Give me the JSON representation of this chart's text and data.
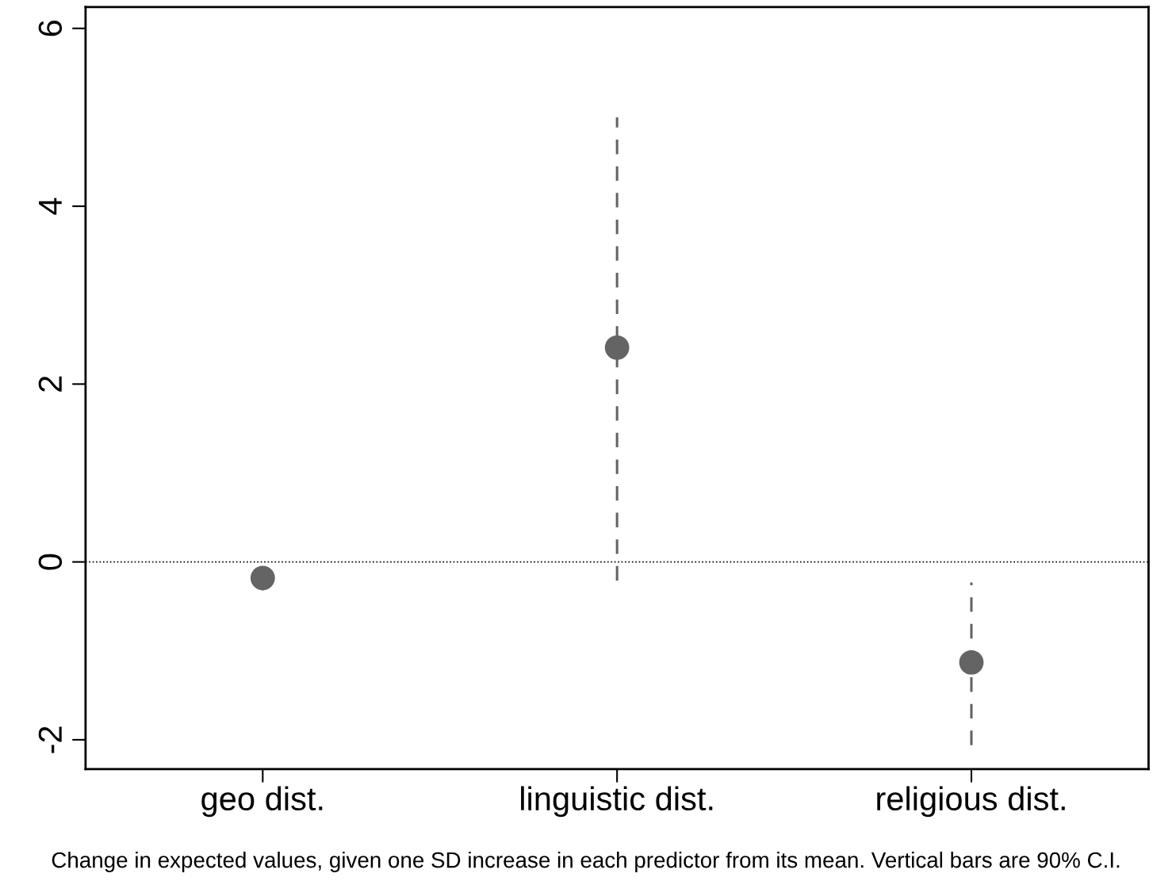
{
  "chart_data": {
    "type": "scatter",
    "categories": [
      "geo dist.",
      "linguistic dist.",
      "religious dist."
    ],
    "series": [
      {
        "color": "#646464",
        "values": [
          -0.18,
          2.41,
          -1.13
        ],
        "errors": [
          [
            -0.32,
            -0.05
          ],
          [
            -0.21,
            5.0
          ],
          [
            -2.06,
            -0.23
          ]
        ]
      }
    ],
    "ylim": [
      -2.33,
      6.24
    ],
    "yticks": [
      -2,
      0,
      2,
      4,
      6
    ],
    "ref_lines": [
      {
        "axis": "y",
        "value": 0,
        "color": "#000000",
        "line_style": "dotted"
      }
    ],
    "marker": "circle",
    "line_style": "dashed",
    "grid": false,
    "legend": false,
    "annotations": [
      "Change in expected values, given one SD increase in each predictor from its mean. Vertical bars are 90% C.I."
    ]
  }
}
